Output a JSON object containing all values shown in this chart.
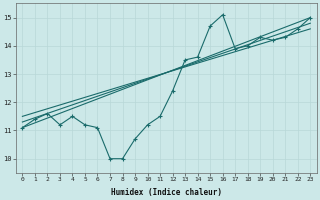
{
  "xlabel": "Humidex (Indice chaleur)",
  "bg_color": "#cce8e8",
  "line_color": "#1a6b6b",
  "grid_color": "#b8d8d8",
  "xlim": [
    -0.5,
    23.5
  ],
  "ylim": [
    9.5,
    15.5
  ],
  "xticks": [
    0,
    1,
    2,
    3,
    4,
    5,
    6,
    7,
    8,
    9,
    10,
    11,
    12,
    13,
    14,
    15,
    16,
    17,
    18,
    19,
    20,
    21,
    22,
    23
  ],
  "yticks": [
    10,
    11,
    12,
    13,
    14,
    15
  ],
  "line1_x": [
    0,
    1,
    2,
    3,
    4,
    5,
    6,
    7,
    8,
    9,
    10,
    11,
    12,
    13,
    14,
    15,
    16,
    17,
    18,
    19,
    20,
    21,
    22,
    23
  ],
  "line1_y": [
    11.1,
    11.4,
    11.6,
    11.2,
    11.5,
    11.2,
    11.1,
    10.0,
    10.0,
    10.7,
    11.2,
    11.5,
    12.4,
    13.5,
    13.6,
    14.7,
    15.1,
    13.9,
    14.0,
    14.3,
    14.2,
    14.3,
    14.6,
    15.0
  ],
  "line2_x": [
    0,
    23
  ],
  "line2_y": [
    11.1,
    15.0
  ],
  "line3_x": [
    0,
    23
  ],
  "line3_y": [
    11.3,
    14.8
  ],
  "line4_x": [
    0,
    23
  ],
  "line4_y": [
    11.5,
    14.6
  ]
}
